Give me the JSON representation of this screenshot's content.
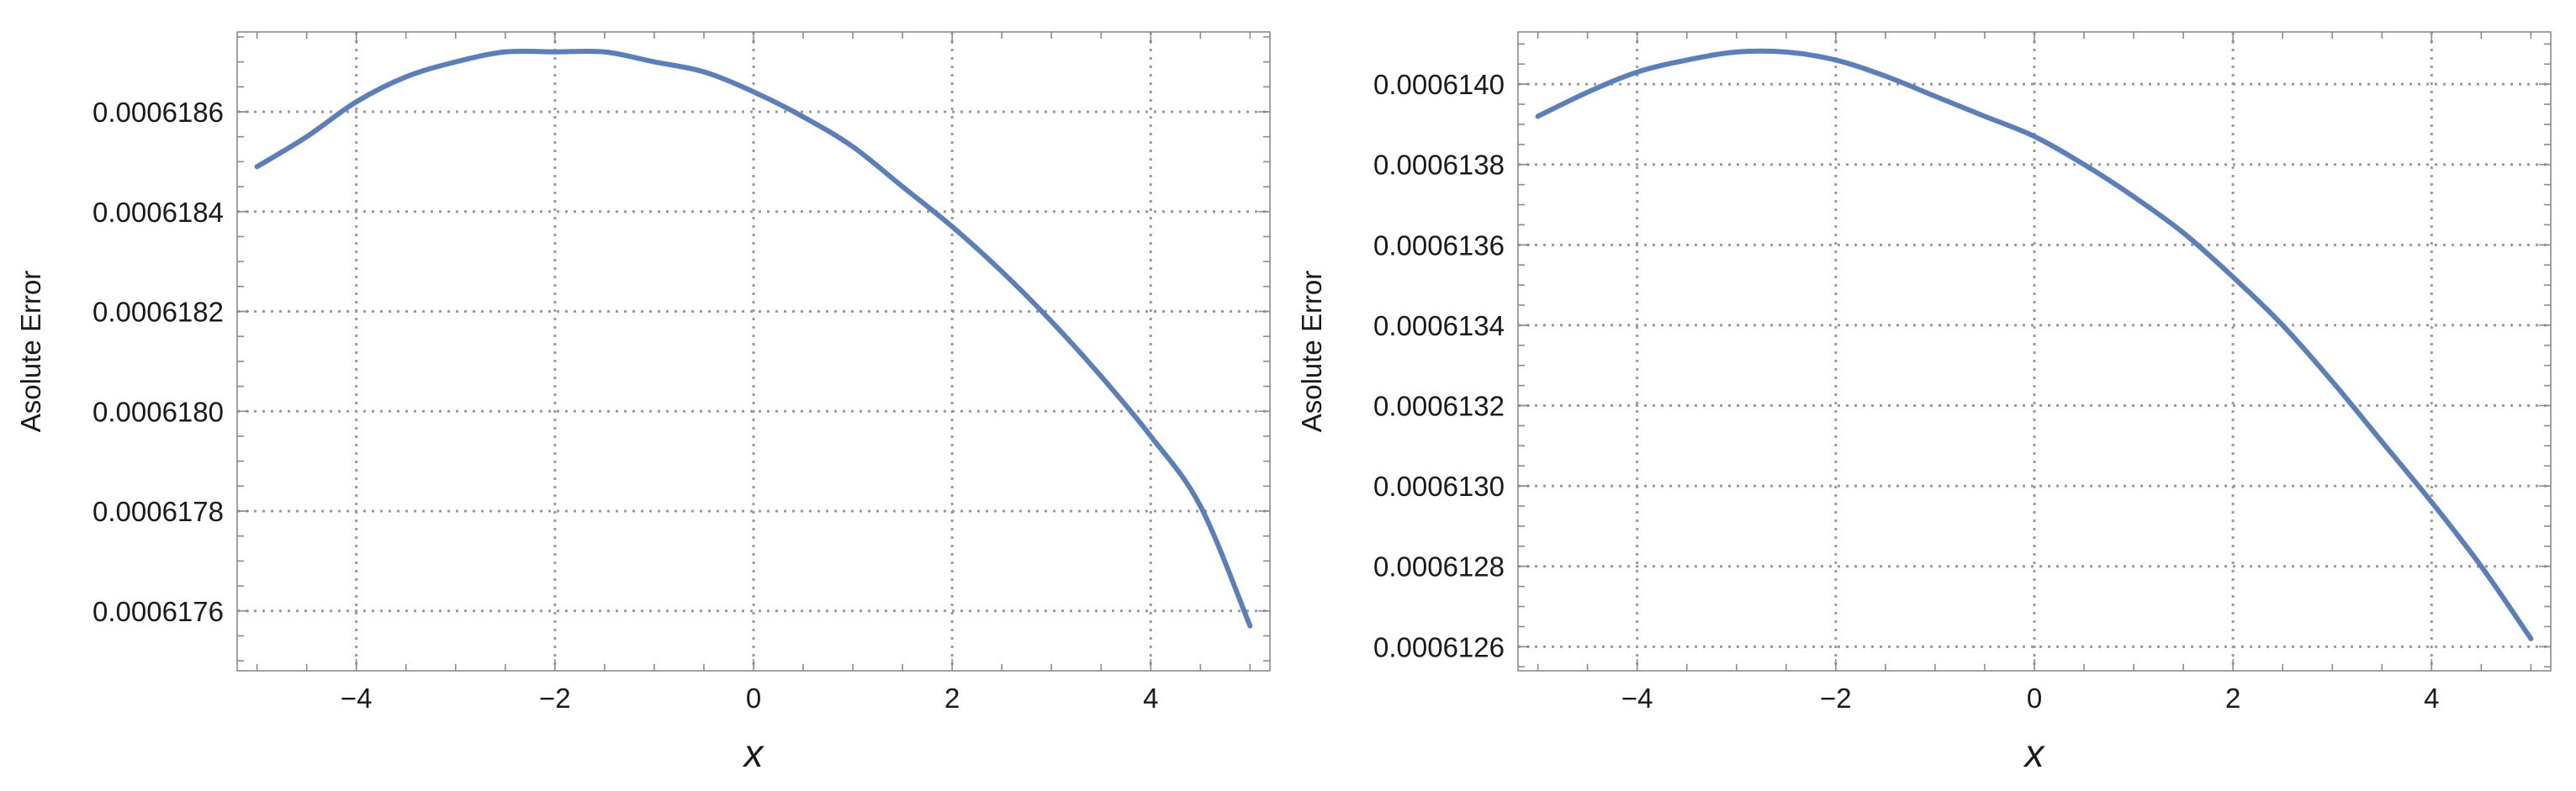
{
  "chart_data": [
    {
      "type": "line",
      "title": "",
      "xlabel": "x",
      "ylabel": "Asolute Error",
      "xlim": [
        -5.2,
        5.2
      ],
      "ylim": [
        0.00061748,
        0.00061876
      ],
      "xticks": [
        -4,
        -2,
        0,
        2,
        4
      ],
      "xtick_labels": [
        "−4",
        "−2",
        "0",
        "2",
        "4"
      ],
      "yticks": [
        0.0006176,
        0.0006178,
        0.000618,
        0.0006182,
        0.0006184,
        0.0006186
      ],
      "ytick_labels": [
        "0.0006176",
        "0.0006178",
        "0.0006180",
        "0.0006182",
        "0.0006184",
        "0.0006186"
      ],
      "grid": true,
      "series": [
        {
          "color": "#5b7fb6",
          "x": [
            -5,
            -4.5,
            -4,
            -3.5,
            -3,
            -2.5,
            -2,
            -1.5,
            -1,
            -0.5,
            0,
            0.5,
            1,
            1.5,
            2,
            2.5,
            3,
            3.5,
            4,
            4.5,
            5
          ],
          "y": [
            0.00061849,
            0.00061855,
            0.00061862,
            0.00061867,
            0.0006187,
            0.00061872,
            0.00061872,
            0.00061872,
            0.0006187,
            0.00061868,
            0.00061864,
            0.00061859,
            0.00061853,
            0.00061845,
            0.00061837,
            0.00061828,
            0.00061818,
            0.00061807,
            0.00061795,
            0.00061781,
            0.00061757
          ]
        }
      ]
    },
    {
      "type": "line",
      "title": "",
      "xlabel": "x",
      "ylabel": "Asolute Error",
      "xlim": [
        -5.2,
        5.2
      ],
      "ylim": [
        0.00061254,
        0.00061413
      ],
      "xticks": [
        -4,
        -2,
        0,
        2,
        4
      ],
      "xtick_labels": [
        "−4",
        "−2",
        "0",
        "2",
        "4"
      ],
      "yticks": [
        0.0006126,
        0.0006128,
        0.000613,
        0.0006132,
        0.0006134,
        0.0006136,
        0.0006138,
        0.000614
      ],
      "ytick_labels": [
        "0.0006126",
        "0.0006128",
        "0.0006130",
        "0.0006132",
        "0.0006134",
        "0.0006136",
        "0.0006138",
        "0.0006140"
      ],
      "grid": true,
      "series": [
        {
          "color": "#5b7fb6",
          "x": [
            -5,
            -4.5,
            -4,
            -3.5,
            -3,
            -2.5,
            -2,
            -1.5,
            -1,
            -0.5,
            0,
            0.5,
            1,
            1.5,
            2,
            2.5,
            3,
            3.5,
            4,
            4.5,
            5
          ],
          "y": [
            0.00061392,
            0.00061398,
            0.00061403,
            0.00061406,
            0.00061408,
            0.00061408,
            0.00061406,
            0.00061402,
            0.00061397,
            0.00061392,
            0.00061387,
            0.0006138,
            0.00061372,
            0.00061363,
            0.00061352,
            0.0006134,
            0.00061326,
            0.00061311,
            0.00061296,
            0.0006128,
            0.00061262
          ]
        }
      ]
    }
  ]
}
